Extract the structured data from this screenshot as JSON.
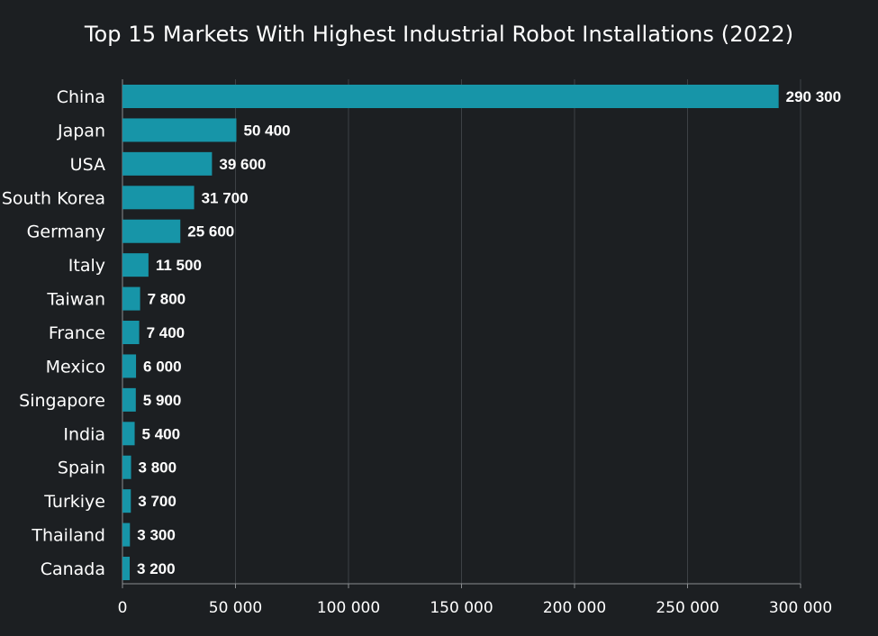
{
  "colors": {
    "background": "#1c1f22",
    "bar": "#1795a8",
    "grid": "#3d4145",
    "axis": "#8a8d90",
    "text": "#ffffff"
  },
  "chart_data": {
    "type": "bar",
    "orientation": "horizontal",
    "title": "Top 15 Markets With Highest Industrial Robot Installations (2022)",
    "xlabel": "",
    "ylabel": "",
    "categories": [
      "China",
      "Japan",
      "USA",
      "South Korea",
      "Germany",
      "Italy",
      "Taiwan",
      "France",
      "Mexico",
      "Singapore",
      "India",
      "Spain",
      "Turkiye",
      "Thailand",
      "Canada"
    ],
    "values": [
      290300,
      50400,
      39600,
      31700,
      25600,
      11500,
      7800,
      7400,
      6000,
      5900,
      5400,
      3800,
      3700,
      3300,
      3200
    ],
    "value_labels": [
      "290 300",
      "50 400",
      "39 600",
      "31 700",
      "25 600",
      "11 500",
      "7 800",
      "7 400",
      "6 000",
      "5 900",
      "5 400",
      "3 800",
      "3 700",
      "3 300",
      "3 200"
    ],
    "xlim": [
      0,
      300000
    ],
    "xticks": [
      0,
      50000,
      100000,
      150000,
      200000,
      250000,
      300000
    ],
    "xtick_labels": [
      "0",
      "50 000",
      "100 000",
      "150 000",
      "200 000",
      "250 000",
      "300 000"
    ],
    "grid": "vertical",
    "legend": "none"
  }
}
